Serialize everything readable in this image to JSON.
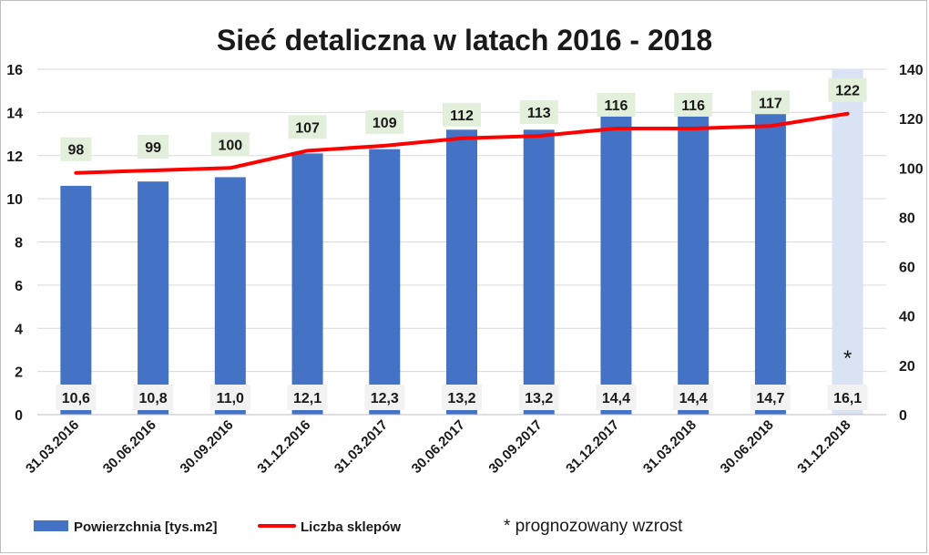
{
  "chart_data": {
    "type": "bar",
    "title": "Sieć detaliczna w latach 2016 - 2018",
    "categories": [
      "31.03.2016",
      "30.06.2016",
      "30.09.2016",
      "31.12.2016",
      "31.03.2017",
      "30.06.2017",
      "30.09.2017",
      "31.12.2017",
      "31.03.2018",
      "30.06.2018",
      "31.12.2018"
    ],
    "series": [
      {
        "name": "Powierzchnia [tys.m2]",
        "type": "bar",
        "axis": "left",
        "values": [
          10.6,
          10.8,
          11.0,
          12.1,
          12.3,
          13.2,
          13.2,
          14.4,
          14.4,
          14.7,
          16.1
        ],
        "value_labels": [
          "10,6",
          "10,8",
          "11,0",
          "12,1",
          "12,3",
          "13,2",
          "13,2",
          "14,4",
          "14,4",
          "14,7",
          "16,1"
        ],
        "color": "#4472c4",
        "forecast_color": "#dae3f3"
      },
      {
        "name": "Liczba sklepów",
        "type": "line",
        "axis": "right",
        "values": [
          98,
          99,
          100,
          107,
          109,
          112,
          113,
          116,
          116,
          117,
          122
        ],
        "value_labels": [
          "98",
          "99",
          "100",
          "107",
          "109",
          "112",
          "113",
          "116",
          "116",
          "117",
          "122"
        ],
        "color": "#ff0000",
        "label_bg": "#e2efda"
      }
    ],
    "forecast_index": 10,
    "forecast_marker": "*",
    "note": "* prognozowany wzrost",
    "y_left": {
      "min": 0,
      "max": 16,
      "step": 2,
      "ticks": [
        "0",
        "2",
        "4",
        "6",
        "8",
        "10",
        "12",
        "14",
        "16"
      ]
    },
    "y_right": {
      "min": 0,
      "max": 140,
      "step": 20,
      "ticks": [
        "0",
        "20",
        "40",
        "60",
        "80",
        "100",
        "120",
        "140"
      ]
    },
    "legend_position": "bottom-left",
    "gridlines": true,
    "gridline_color": "#d9d9d9"
  }
}
